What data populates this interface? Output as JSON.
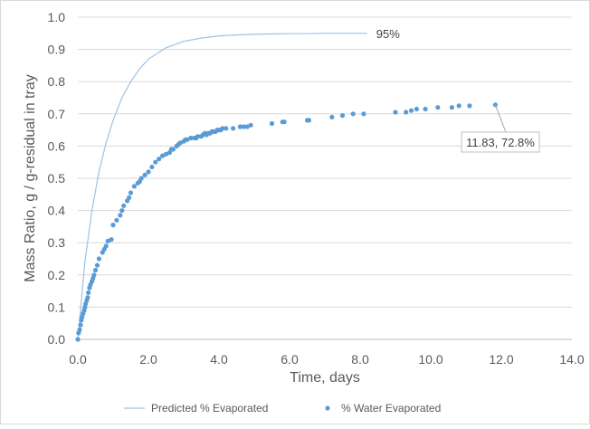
{
  "chart_data": {
    "type": "scatter",
    "title": "",
    "xlabel": "Time, days",
    "ylabel": "Mass Ratio, g / g-residual in tray",
    "xlim": [
      0,
      14
    ],
    "ylim": [
      0,
      1.0
    ],
    "x_ticks": [
      "0.0",
      "2.0",
      "4.0",
      "6.0",
      "8.0",
      "10.0",
      "12.0",
      "14.0"
    ],
    "y_ticks": [
      "0.0",
      "0.1",
      "0.2",
      "0.3",
      "0.4",
      "0.5",
      "0.6",
      "0.7",
      "0.8",
      "0.9",
      "1.0"
    ],
    "grid": "horizontal",
    "legend_position": "bottom",
    "series": [
      {
        "name": "Predicted % Evaporated",
        "type": "line",
        "color": "#9dc3e6",
        "x": [
          0,
          0.2,
          0.4,
          0.6,
          0.8,
          1.0,
          1.25,
          1.5,
          1.75,
          2.0,
          2.5,
          3.0,
          3.5,
          4.0,
          4.5,
          5.0,
          5.5,
          6.0,
          6.5,
          7.0,
          7.5,
          8.0,
          8.2
        ],
        "y": [
          0,
          0.24,
          0.4,
          0.52,
          0.61,
          0.68,
          0.75,
          0.8,
          0.84,
          0.87,
          0.905,
          0.925,
          0.935,
          0.942,
          0.945,
          0.947,
          0.948,
          0.949,
          0.949,
          0.95,
          0.95,
          0.95,
          0.95
        ]
      },
      {
        "name": "% Water Evaporated",
        "type": "scatter",
        "color": "#5b9bd5",
        "x": [
          0.0,
          0.02,
          0.05,
          0.08,
          0.1,
          0.12,
          0.15,
          0.18,
          0.2,
          0.22,
          0.25,
          0.28,
          0.3,
          0.33,
          0.36,
          0.4,
          0.43,
          0.46,
          0.5,
          0.55,
          0.6,
          0.7,
          0.75,
          0.8,
          0.85,
          0.95,
          1.0,
          1.1,
          1.2,
          1.25,
          1.3,
          1.4,
          1.45,
          1.5,
          1.6,
          1.7,
          1.75,
          1.8,
          1.9,
          2.0,
          2.1,
          2.2,
          2.3,
          2.4,
          2.5,
          2.6,
          2.65,
          2.7,
          2.8,
          2.85,
          2.9,
          3.0,
          3.05,
          3.1,
          3.2,
          3.3,
          3.35,
          3.4,
          3.5,
          3.55,
          3.6,
          3.65,
          3.7,
          3.75,
          3.8,
          3.85,
          3.9,
          3.95,
          4.0,
          4.05,
          4.1,
          4.2,
          4.4,
          4.6,
          4.7,
          4.8,
          4.9,
          5.5,
          5.8,
          5.85,
          6.5,
          6.55,
          7.2,
          7.5,
          7.8,
          8.1,
          9.0,
          9.3,
          9.45,
          9.6,
          9.85,
          10.2,
          10.6,
          10.8,
          11.1,
          11.83
        ],
        "y": [
          0.0,
          0.02,
          0.03,
          0.045,
          0.06,
          0.07,
          0.08,
          0.09,
          0.1,
          0.11,
          0.12,
          0.13,
          0.145,
          0.16,
          0.17,
          0.18,
          0.19,
          0.2,
          0.215,
          0.23,
          0.25,
          0.27,
          0.28,
          0.29,
          0.305,
          0.31,
          0.355,
          0.37,
          0.385,
          0.4,
          0.415,
          0.43,
          0.44,
          0.455,
          0.475,
          0.485,
          0.49,
          0.5,
          0.51,
          0.52,
          0.535,
          0.55,
          0.56,
          0.57,
          0.575,
          0.58,
          0.59,
          0.59,
          0.6,
          0.605,
          0.61,
          0.615,
          0.62,
          0.62,
          0.625,
          0.625,
          0.625,
          0.63,
          0.63,
          0.635,
          0.64,
          0.635,
          0.64,
          0.64,
          0.645,
          0.645,
          0.645,
          0.65,
          0.65,
          0.65,
          0.655,
          0.655,
          0.655,
          0.66,
          0.66,
          0.66,
          0.665,
          0.67,
          0.675,
          0.675,
          0.68,
          0.68,
          0.69,
          0.695,
          0.7,
          0.7,
          0.705,
          0.705,
          0.71,
          0.715,
          0.715,
          0.72,
          0.72,
          0.725,
          0.725,
          0.728
        ]
      }
    ],
    "annotations": [
      {
        "text": "95%",
        "x": 8.2,
        "y": 0.95
      },
      {
        "text": "11.83, 72.8%",
        "x": 11.83,
        "y": 0.728
      }
    ]
  }
}
